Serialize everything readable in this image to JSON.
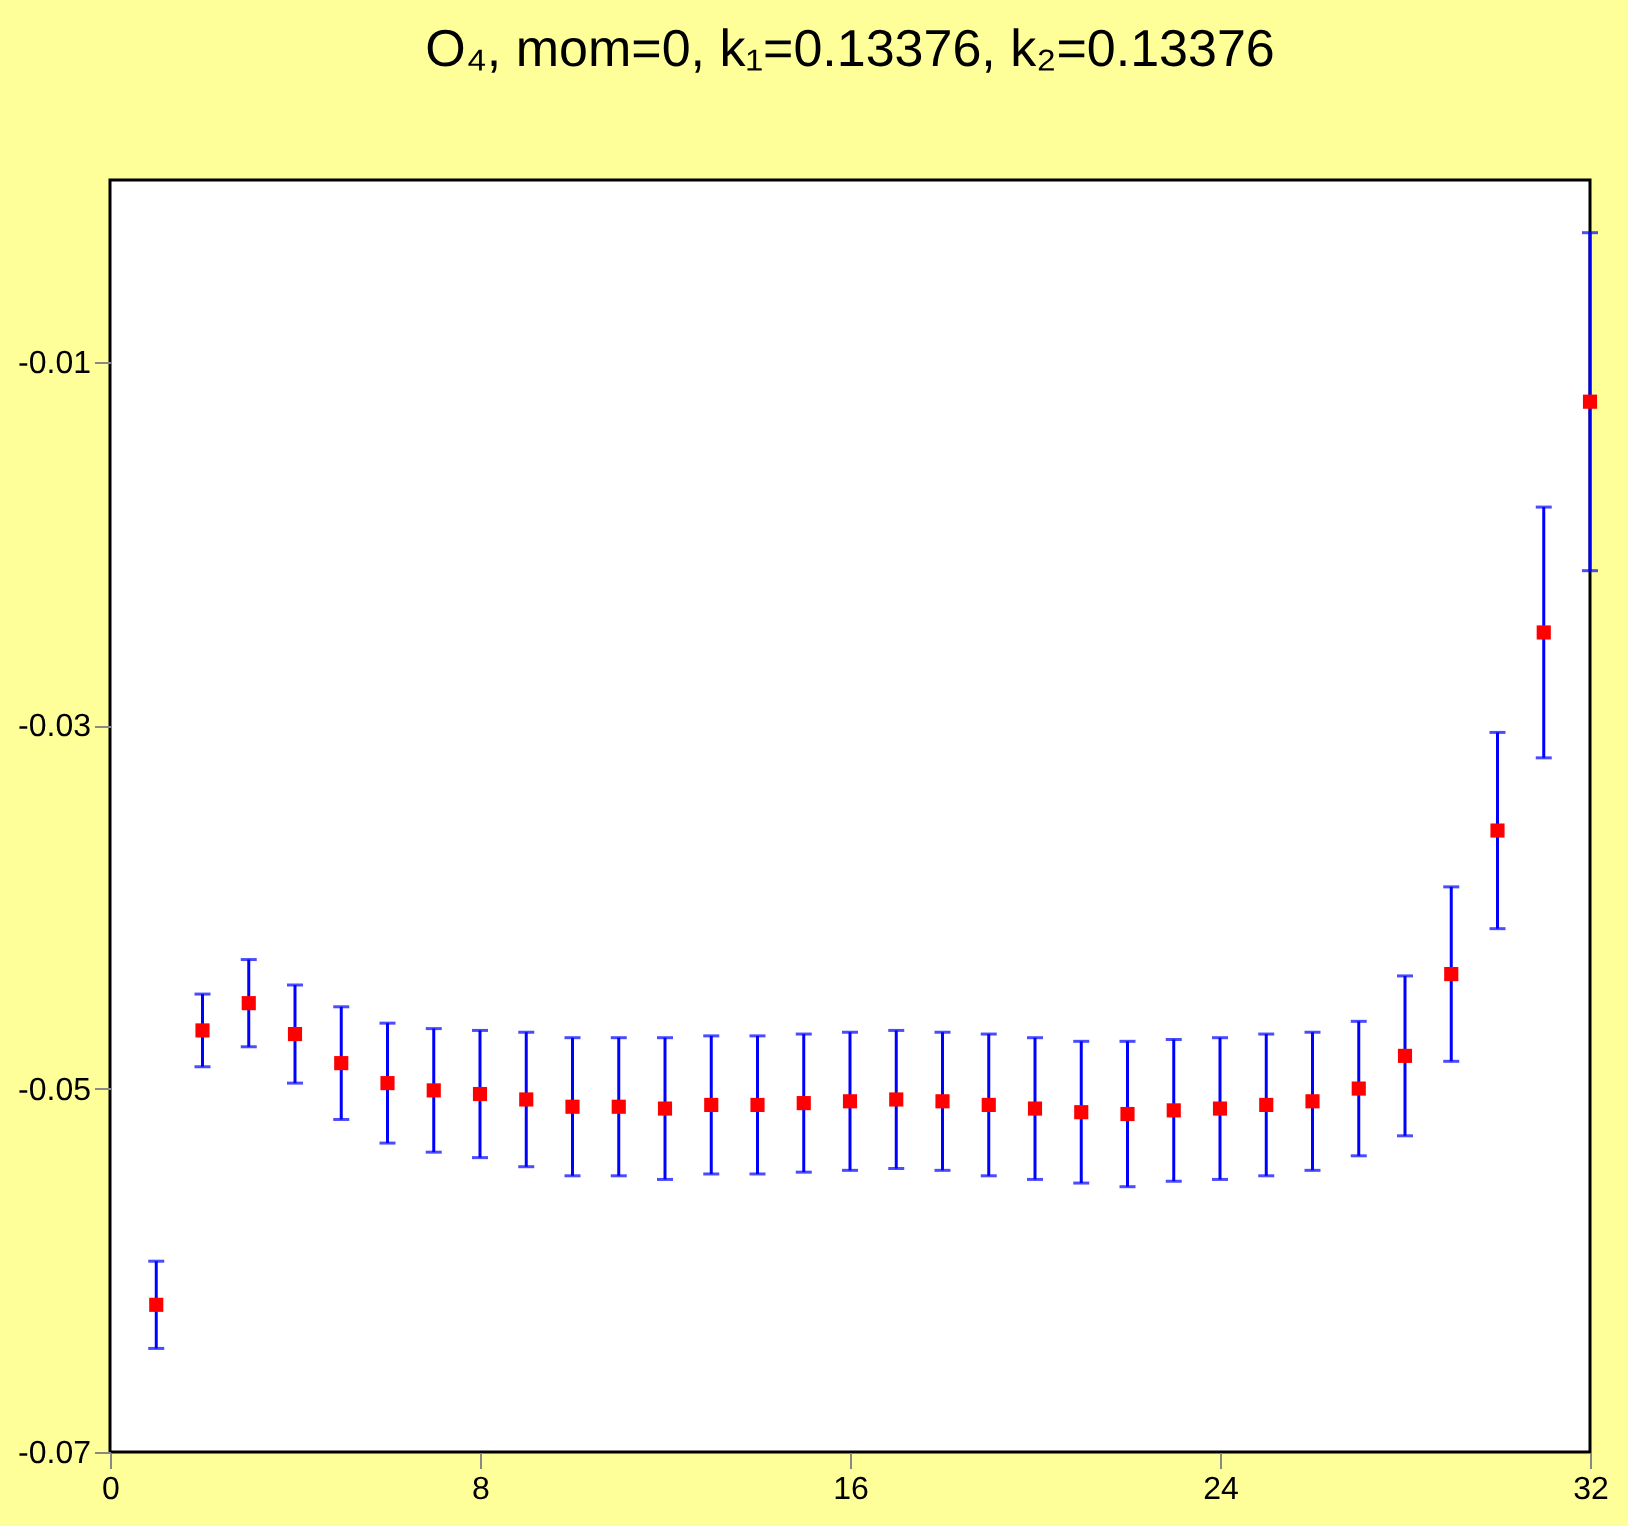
{
  "chart_data": {
    "type": "scatter",
    "title": "O₄, mom=0, k₁=0.13376, k₂=0.13376",
    "x": [
      1,
      2,
      3,
      4,
      5,
      6,
      7,
      8,
      9,
      10,
      11,
      12,
      13,
      14,
      15,
      16,
      17,
      18,
      19,
      20,
      21,
      22,
      23,
      24,
      25,
      26,
      27,
      28,
      29,
      30,
      31,
      32
    ],
    "series": [
      {
        "color": "#ff0000",
        "values": [
          -0.0619,
          -0.0468,
          -0.0453,
          -0.047,
          -0.0486,
          -0.0497,
          -0.0501,
          -0.0503,
          -0.0506,
          -0.051,
          -0.051,
          -0.0511,
          -0.0509,
          -0.0509,
          -0.0508,
          -0.0507,
          -0.0506,
          -0.0507,
          -0.0509,
          -0.0511,
          -0.0513,
          -0.0514,
          -0.0512,
          -0.0511,
          -0.0509,
          -0.0507,
          -0.05,
          -0.0482,
          -0.0437,
          -0.0358,
          -0.0249,
          -0.0122
        ],
        "errors": [
          0.0024,
          0.002,
          0.0024,
          0.0027,
          0.0031,
          0.0033,
          0.0034,
          0.0035,
          0.0037,
          0.0038,
          0.0038,
          0.0039,
          0.0038,
          0.0038,
          0.0038,
          0.0038,
          0.0038,
          0.0038,
          0.0039,
          0.0039,
          0.0039,
          0.004,
          0.0039,
          0.0039,
          0.0039,
          0.0038,
          0.0037,
          0.0044,
          0.0048,
          0.0054,
          0.0069,
          0.0093
        ]
      }
    ],
    "xlim": [
      0,
      32
    ],
    "xticks": [
      0,
      8,
      16,
      24,
      32
    ],
    "ylim": [
      -0.07,
      0
    ],
    "yticks": [
      -0.07,
      -0.05,
      -0.03,
      -0.01
    ],
    "marker": "square",
    "grid": false,
    "legend": false
  }
}
